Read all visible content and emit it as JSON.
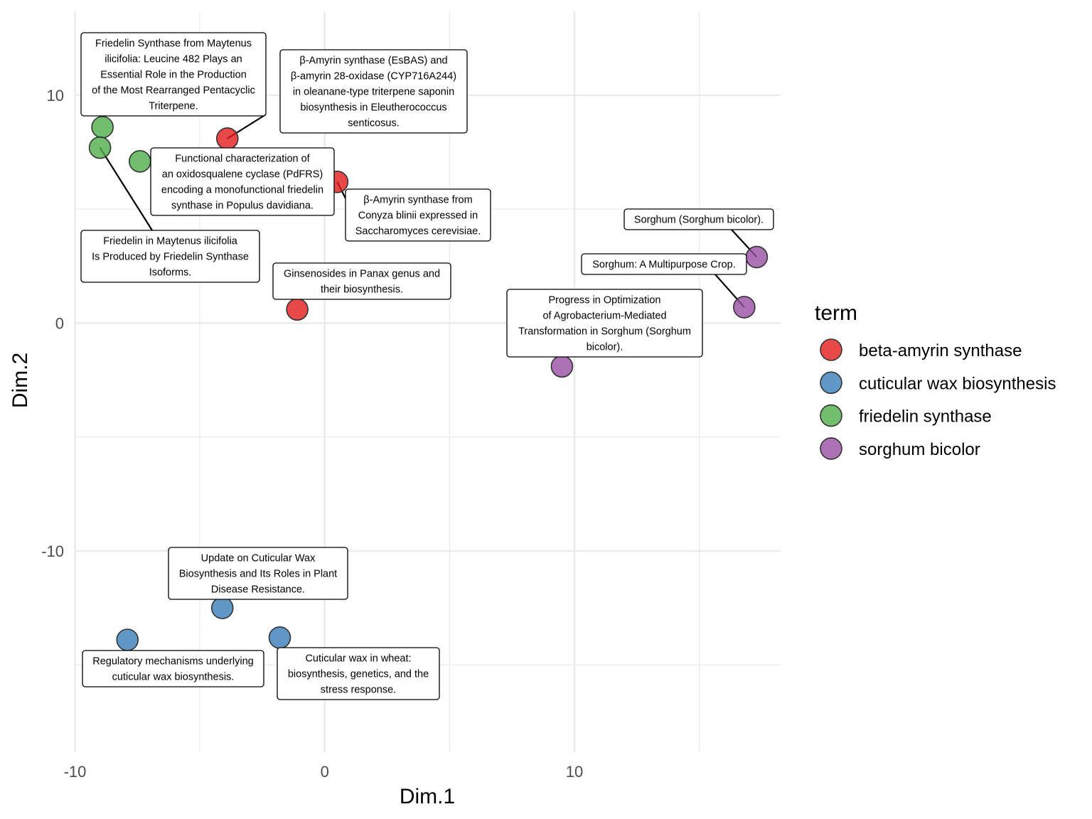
{
  "chart_data": {
    "type": "scatter",
    "xlabel": "Dim.1",
    "ylabel": "Dim.2",
    "xlim": [
      -10,
      18
    ],
    "ylim": [
      -18,
      13
    ],
    "x_ticks": [
      {
        "value": -10,
        "label": "-10"
      },
      {
        "value": 0,
        "label": "0"
      },
      {
        "value": 10,
        "label": "10"
      }
    ],
    "y_ticks": [
      {
        "value": -10,
        "label": "-10"
      },
      {
        "value": 0,
        "label": "0"
      },
      {
        "value": 10,
        "label": "10"
      }
    ],
    "grid": true,
    "legend": {
      "title": "term",
      "position": "right",
      "entries": [
        {
          "name": "beta-amyrin synthase",
          "color": "#E41A1C"
        },
        {
          "name": "cuticular wax biosynthesis",
          "color": "#377EB8"
        },
        {
          "name": "friedelin synthase",
          "color": "#4DAF4A"
        },
        {
          "name": "sorghum bicolor",
          "color": "#984EA3"
        }
      ]
    },
    "series": [
      {
        "name": "beta-amyrin synthase",
        "color": "#E41A1C",
        "points": [
          {
            "x": -3.9,
            "y": 8.1,
            "label": [
              "β-Amyrin synthase (EsBAS) and",
              "β-amyrin 28-oxidase (CYP716A244)",
              "in oleanane-type triterpene saponin",
              "biosynthesis in Eleutherococcus",
              "senticosus."
            ]
          },
          {
            "x": 0.5,
            "y": 6.2,
            "label": [
              "β-Amyrin synthase from",
              "Conyza blinii expressed in",
              "Saccharomyces cerevisiae."
            ]
          },
          {
            "x": -1.1,
            "y": 0.6,
            "label": [
              "Ginsenosides in Panax genus and",
              "their biosynthesis."
            ]
          }
        ]
      },
      {
        "name": "cuticular wax biosynthesis",
        "color": "#377EB8",
        "points": [
          {
            "x": -4.1,
            "y": -12.5,
            "label": [
              "Update on Cuticular Wax",
              "Biosynthesis and Its Roles in Plant",
              "Disease Resistance."
            ]
          },
          {
            "x": -7.9,
            "y": -13.9,
            "label": [
              "Regulatory mechanisms underlying",
              "cuticular wax biosynthesis."
            ]
          },
          {
            "x": -1.8,
            "y": -13.8,
            "label": [
              "Cuticular wax in wheat:",
              "biosynthesis, genetics, and the",
              "stress response."
            ]
          }
        ]
      },
      {
        "name": "friedelin synthase",
        "color": "#4DAF4A",
        "points": [
          {
            "x": -8.9,
            "y": 8.6,
            "label": [
              "Friedelin Synthase from Maytenus",
              "ilicifolia: Leucine 482 Plays an",
              "Essential Role in the Production",
              "of the Most Rearranged Pentacyclic",
              "Triterpene."
            ]
          },
          {
            "x": -9.0,
            "y": 7.7,
            "label": [
              "Friedelin in Maytenus ilicifolia",
              "Is Produced by Friedelin Synthase",
              "Isoforms."
            ]
          },
          {
            "x": -7.4,
            "y": 7.1,
            "label": [
              "Functional characterization of",
              "an oxidosqualene cyclase (PdFRS)",
              "encoding a monofunctional friedelin",
              "synthase in Populus davidiana."
            ]
          }
        ]
      },
      {
        "name": "sorghum bicolor",
        "color": "#984EA3",
        "points": [
          {
            "x": 17.3,
            "y": 2.9,
            "label": [
              "Sorghum (Sorghum bicolor)."
            ]
          },
          {
            "x": 16.8,
            "y": 0.7,
            "label": [
              "Sorghum: A Multipurpose Crop."
            ]
          },
          {
            "x": 9.5,
            "y": -1.9,
            "label": [
              "Progress in Optimization",
              "of Agrobacterium-Mediated",
              "Transformation in Sorghum (Sorghum",
              "bicolor)."
            ]
          }
        ]
      }
    ]
  }
}
